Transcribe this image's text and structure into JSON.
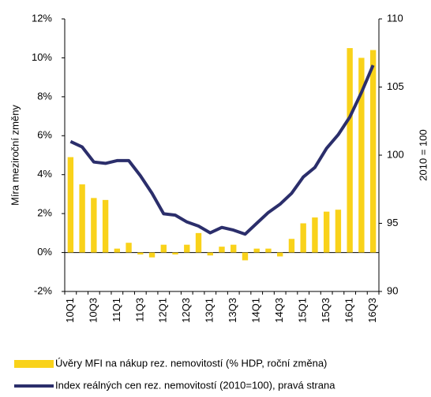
{
  "chart_data": {
    "type": "bar-line",
    "y_label": "Míra meziroční změny",
    "y2_label": "2010 = 100",
    "categories": [
      "10Q1",
      null,
      "10Q3",
      null,
      "11Q1",
      null,
      "11Q3",
      null,
      "12Q1",
      null,
      "12Q3",
      null,
      "13Q1",
      null,
      "13Q3",
      null,
      "14Q1",
      null,
      "14Q3",
      null,
      "15Q1",
      null,
      "15Q3",
      null,
      "16Q1",
      null,
      "16Q3"
    ],
    "series": [
      {
        "name": "Úvěry MFI na nákup rez. nemovitostí (% HDP, roční změna)",
        "type": "bar",
        "color": "#f9d21a",
        "values": [
          4.9,
          3.5,
          2.8,
          2.7,
          0.2,
          0.5,
          -0.1,
          -0.25,
          0.4,
          -0.1,
          0.4,
          1.0,
          -0.15,
          0.3,
          0.4,
          -0.4,
          0.2,
          0.2,
          -0.2,
          0.7,
          1.5,
          1.8,
          2.1,
          2.2,
          10.5,
          10.0,
          10.4
        ]
      },
      {
        "name": "Index reálných cen rez. nemovitostí (2010=100), pravá strana",
        "type": "line",
        "axis": "y2",
        "color": "#2b2e6b",
        "values": [
          101.0,
          100.6,
          99.5,
          99.4,
          99.6,
          99.6,
          98.5,
          97.2,
          95.7,
          95.6,
          95.1,
          94.8,
          94.3,
          94.7,
          94.5,
          94.2,
          95.0,
          95.8,
          96.4,
          97.2,
          98.4,
          99.1,
          100.5,
          101.5,
          102.8,
          104.6,
          106.6
        ]
      }
    ],
    "ylim": [
      -2,
      12
    ],
    "yticks": [
      {
        "value": -2,
        "label": "-2%"
      },
      {
        "value": 0,
        "label": "0%"
      },
      {
        "value": 2,
        "label": "2%"
      },
      {
        "value": 4,
        "label": "4%"
      },
      {
        "value": 6,
        "label": "6%"
      },
      {
        "value": 8,
        "label": "8%"
      },
      {
        "value": 10,
        "label": "10%"
      },
      {
        "value": 12,
        "label": "12%"
      }
    ],
    "y2lim": [
      90,
      110
    ],
    "y2ticks": [
      90,
      95,
      100,
      105,
      110
    ],
    "legend": "bottom"
  }
}
